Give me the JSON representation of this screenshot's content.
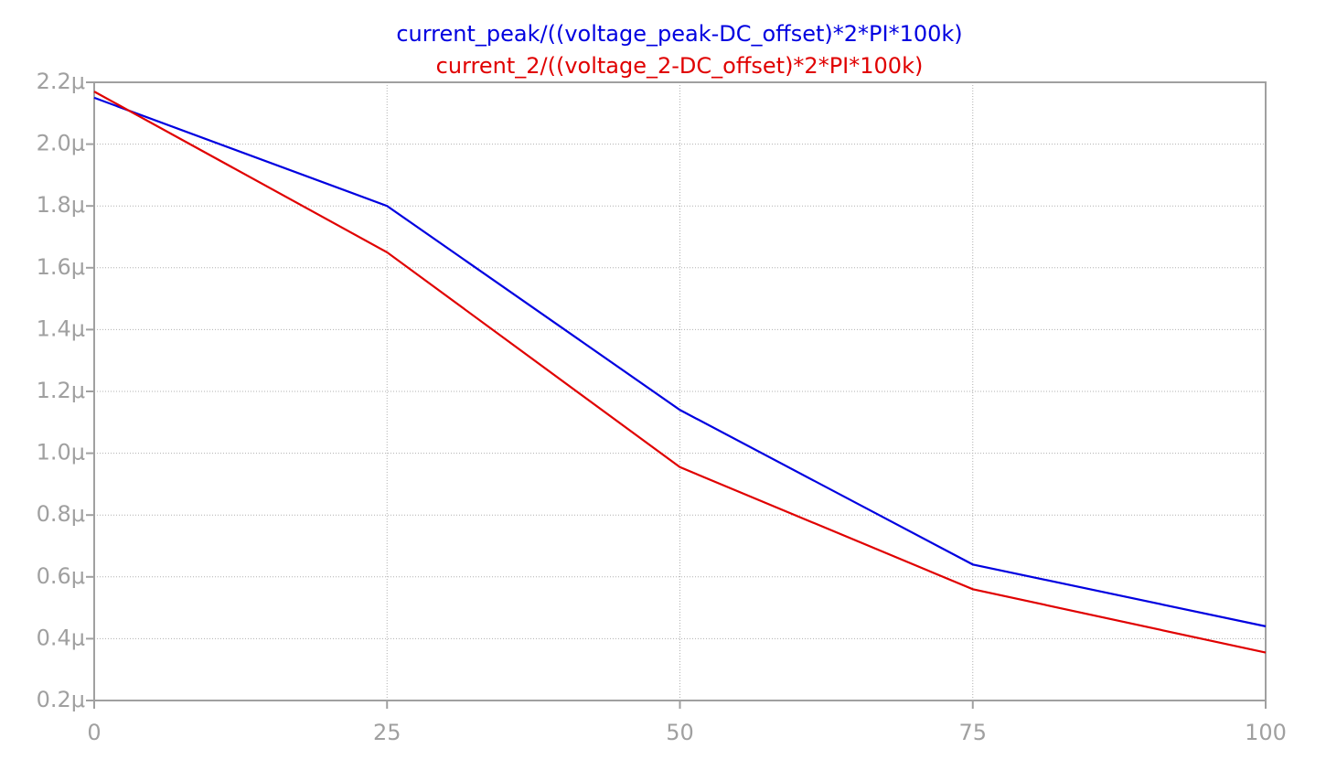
{
  "chart_data": {
    "type": "line",
    "x": [
      0,
      25,
      50,
      75,
      100
    ],
    "series": [
      {
        "name": "current_peak/((voltage_peak-DC_offset)*2*PI*100k)",
        "color": "#0000e0",
        "values": [
          2.15,
          1.8,
          1.14,
          0.64,
          0.44
        ]
      },
      {
        "name": "current_2/((voltage_2-DC_offset)*2*PI*100k)",
        "color": "#e00000",
        "values": [
          2.17,
          1.65,
          0.955,
          0.56,
          0.355
        ]
      }
    ],
    "xlim": [
      0,
      100
    ],
    "xticks": [
      0,
      25,
      50,
      75,
      100
    ],
    "ylim": [
      0.2,
      2.2
    ],
    "yticks": [
      {
        "value": 0.2,
        "label": "0.2μ"
      },
      {
        "value": 0.4,
        "label": "0.4μ"
      },
      {
        "value": 0.6,
        "label": "0.6μ"
      },
      {
        "value": 0.8,
        "label": "0.8μ"
      },
      {
        "value": 1.0,
        "label": "1.0μ"
      },
      {
        "value": 1.2,
        "label": "1.2μ"
      },
      {
        "value": 1.4,
        "label": "1.4μ"
      },
      {
        "value": 1.6,
        "label": "1.6μ"
      },
      {
        "value": 1.8,
        "label": "1.8μ"
      },
      {
        "value": 2.0,
        "label": "2.0μ"
      },
      {
        "value": 2.2,
        "label": "2.2μ"
      }
    ],
    "grid": true
  }
}
